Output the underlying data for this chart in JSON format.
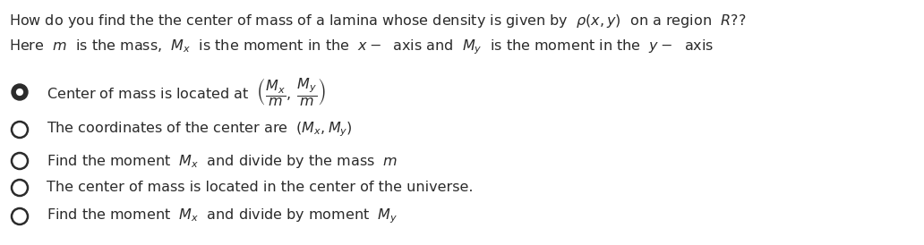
{
  "background_color": "#ffffff",
  "text_color": "#2b2b2b",
  "title_text": "How do you find the the center of mass of a lamina whose density is given by  $\\rho(x, y)$  on a region  $R$??",
  "subtitle_text": "Here  $m$  is the mass,  $M_x$  is the moment in the  $x-$  axis and  $M_y$  is the moment in the  $y-$  axis",
  "options": [
    {
      "label": "Center of mass is located at  $\\left(\\dfrac{M_x}{m},\\; \\dfrac{M_y}{m}\\right)$",
      "correct": true
    },
    {
      "label": "The coordinates of the center are  $\\left(M_x, M_y\\right)$",
      "correct": false
    },
    {
      "label": "Find the moment  $M_x$  and divide by the mass  $m$",
      "correct": false
    },
    {
      "label": "The center of mass is located in the center of the universe.",
      "correct": false
    },
    {
      "label": "Find the moment  $M_x$  and divide by moment  $M_y$",
      "correct": false
    }
  ],
  "title_fontsize": 11.5,
  "subtitle_fontsize": 11.5,
  "option_fontsize": 11.5,
  "figsize": [
    10.32,
    2.74
  ],
  "dpi": 100
}
